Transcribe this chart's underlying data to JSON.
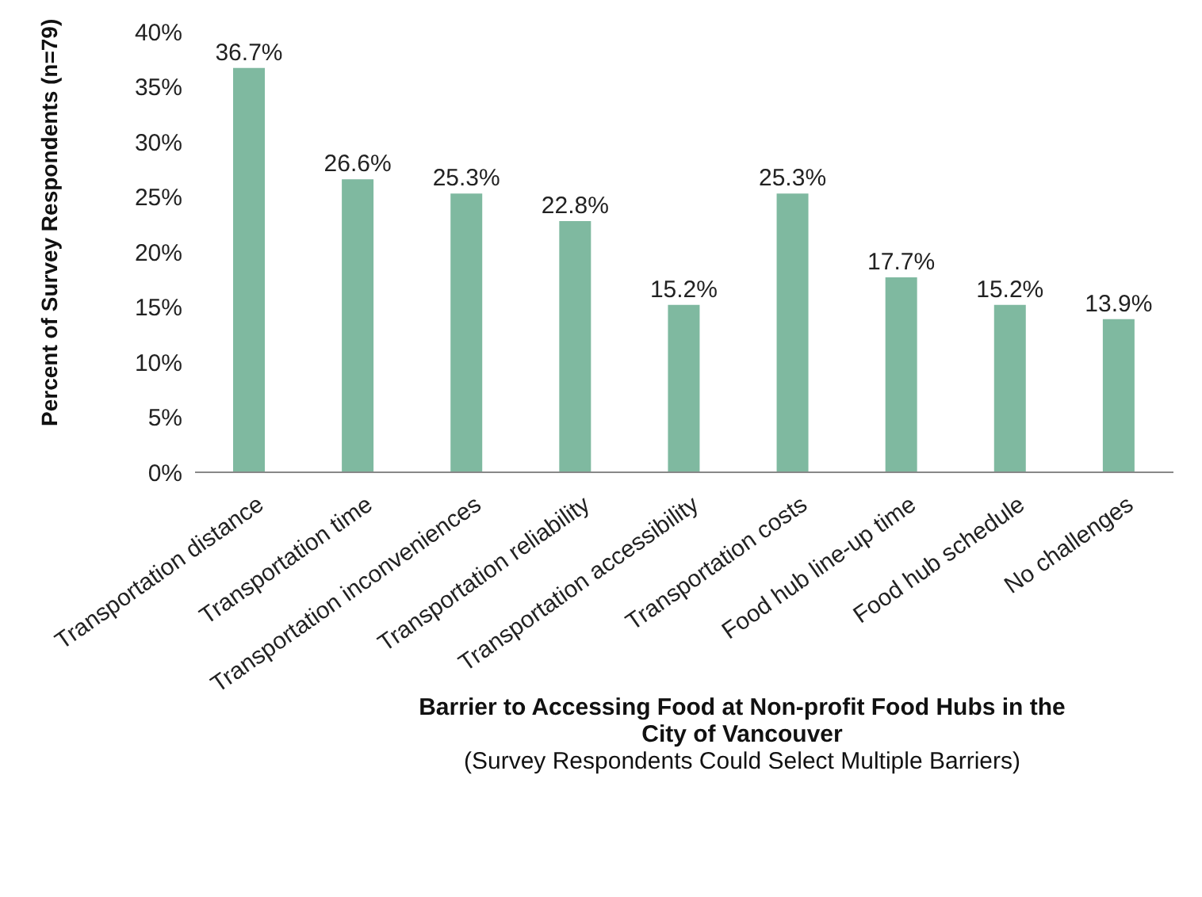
{
  "chart_data": {
    "type": "bar",
    "xlabel": "Barrier to Accessing Food at Non-profit Food Hubs in the City of Vancouver",
    "ylabel": "Percent of Survey Respondents (n=79)",
    "annotations": [
      "(Survey Respondents Could Select Multiple Barriers)"
    ],
    "categories": [
      "Transportation distance",
      "Transportation time",
      "Transportation inconveniences",
      "Transportation reliability",
      "Transportation accessibility",
      "Transportation costs",
      "Food hub line-up time",
      "Food hub schedule",
      "No challenges"
    ],
    "values": [
      36.7,
      26.6,
      25.3,
      22.8,
      15.2,
      25.3,
      17.7,
      15.2,
      13.9
    ],
    "value_labels": [
      "36.7%",
      "26.6%",
      "25.3%",
      "22.8%",
      "15.2%",
      "25.3%",
      "17.7%",
      "15.2%",
      "13.9%"
    ],
    "color": "#7fb9a0",
    "ylim": [
      0,
      40
    ],
    "yticks": [
      {
        "value": 0,
        "label": "0%"
      },
      {
        "value": 5,
        "label": "5%"
      },
      {
        "value": 10,
        "label": "10%"
      },
      {
        "value": 15,
        "label": "15%"
      },
      {
        "value": 20,
        "label": "20%"
      },
      {
        "value": 25,
        "label": "25%"
      },
      {
        "value": 30,
        "label": "30%"
      },
      {
        "value": 35,
        "label": "35%"
      },
      {
        "value": 40,
        "label": "40%"
      }
    ]
  }
}
